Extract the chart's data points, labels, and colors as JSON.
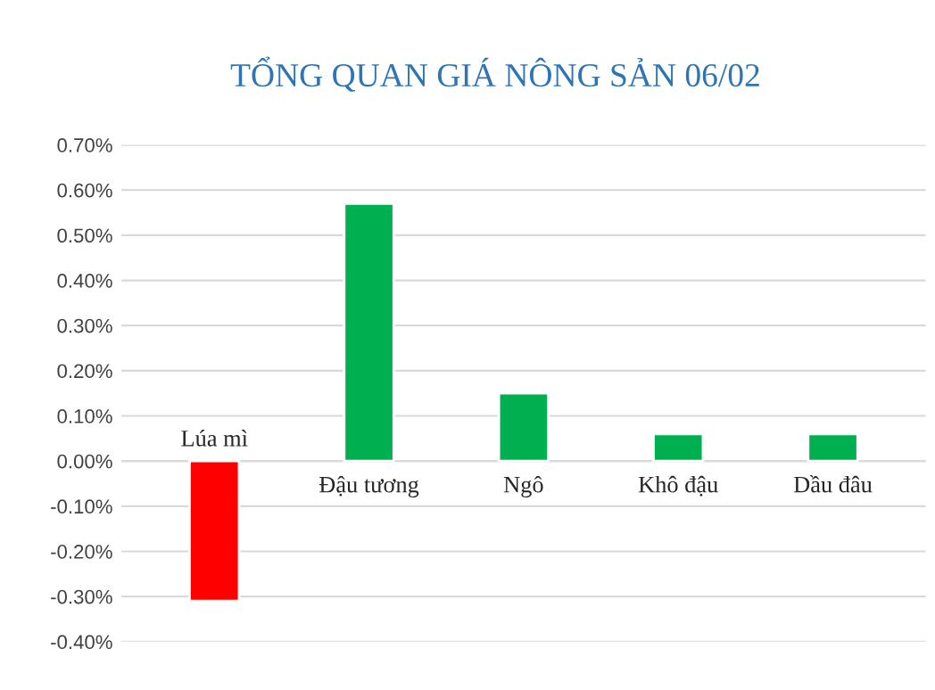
{
  "chart_data": {
    "type": "bar",
    "title": "TỔNG QUAN GIÁ NÔNG SẢN 06/02",
    "categories": [
      "Lúa mì",
      "Đậu tương",
      "Ngô",
      "Khô đậu",
      "Dầu đâu"
    ],
    "values": [
      -0.31,
      0.57,
      0.15,
      0.06,
      0.06
    ],
    "colors": [
      "#ff0000",
      "#00b050",
      "#00b050",
      "#00b050",
      "#00b050"
    ],
    "ylim": [
      -0.4,
      0.7
    ],
    "yticks": [
      {
        "value": -0.4,
        "label": "-0.40%"
      },
      {
        "value": -0.3,
        "label": "-0.30%"
      },
      {
        "value": -0.2,
        "label": "-0.20%"
      },
      {
        "value": -0.1,
        "label": "-0.10%"
      },
      {
        "value": 0,
        "label": "0.00%"
      },
      {
        "value": 0.1,
        "label": "0.10%"
      },
      {
        "value": 0.2,
        "label": "0.20%"
      },
      {
        "value": 0.3,
        "label": "0.30%"
      },
      {
        "value": 0.4,
        "label": "0.40%"
      },
      {
        "value": 0.5,
        "label": "0.50%"
      },
      {
        "value": 0.6,
        "label": "0.60%"
      },
      {
        "value": 0.7,
        "label": "0.70%"
      }
    ],
    "grid": "y"
  }
}
